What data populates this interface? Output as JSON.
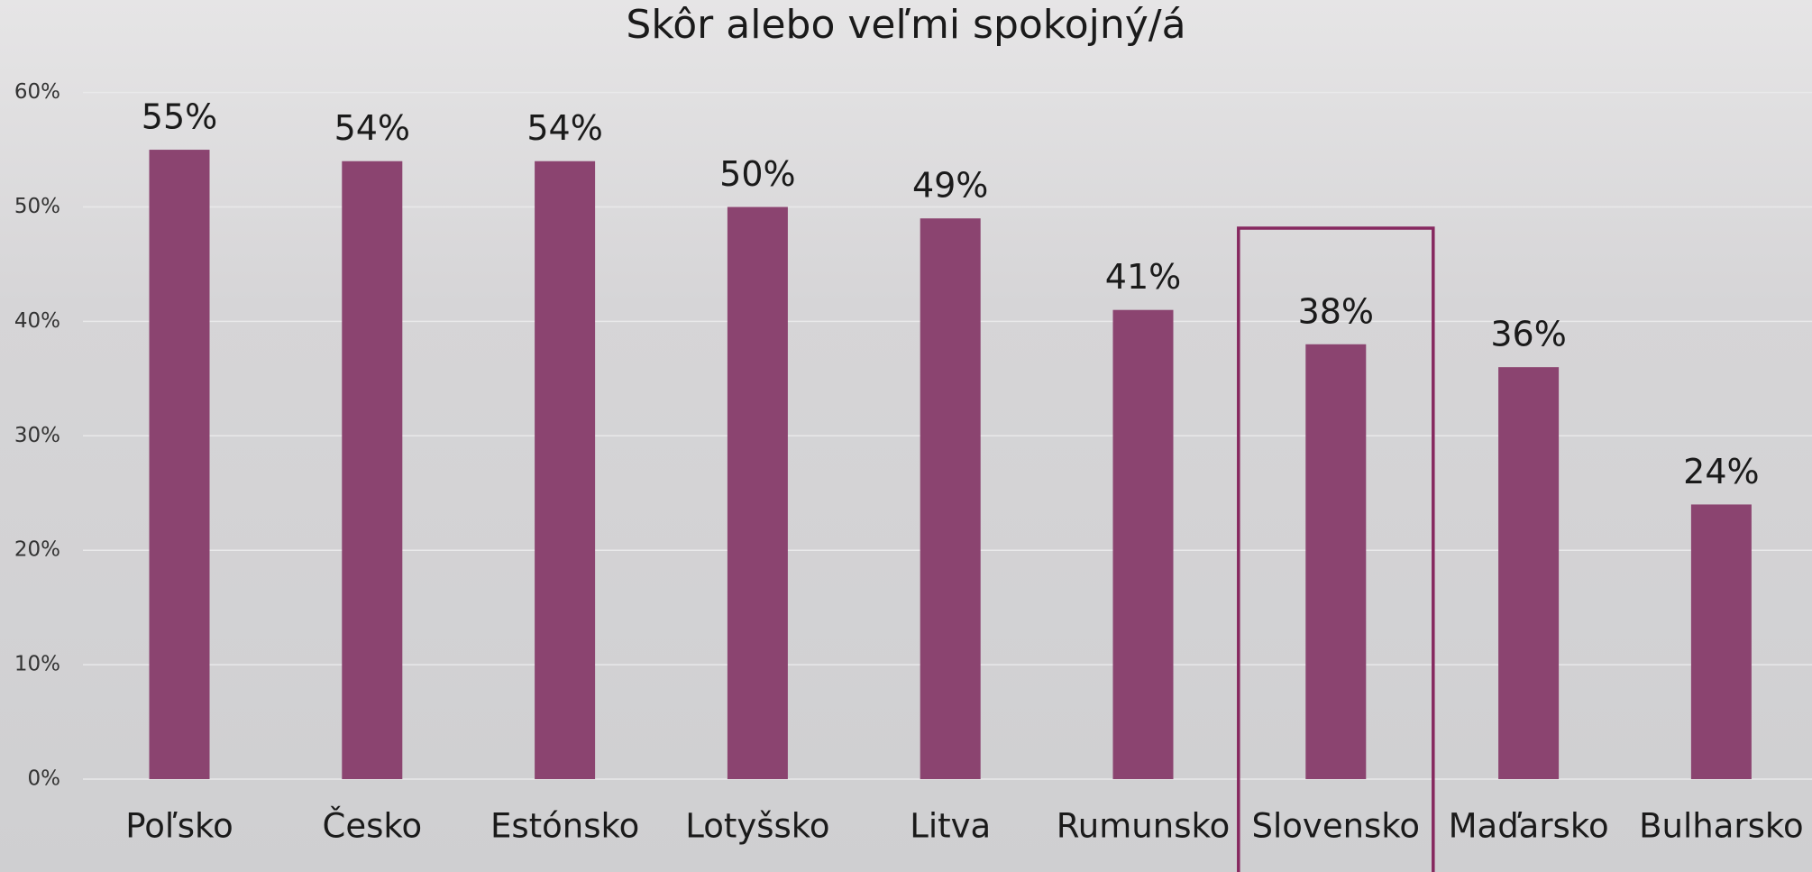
{
  "chart_data": {
    "type": "bar",
    "title": "Skôr alebo veľmi spokojný/á",
    "categories": [
      "Poľsko",
      "Česko",
      "Estónsko",
      "Lotyšsko",
      "Litva",
      "Rumunsko",
      "Slovensko",
      "Maďarsko",
      "Bulharsko"
    ],
    "values": [
      55,
      54,
      54,
      50,
      49,
      41,
      38,
      36,
      24
    ],
    "value_labels": [
      "55%",
      "54%",
      "54%",
      "50%",
      "49%",
      "41%",
      "38%",
      "36%",
      "24%"
    ],
    "color": "#8b4470",
    "ylim": [
      0,
      60
    ],
    "yticks": [
      {
        "value": 0,
        "label": "0%"
      },
      {
        "value": 10,
        "label": "10%"
      },
      {
        "value": 20,
        "label": "20%"
      },
      {
        "value": 30,
        "label": "30%"
      },
      {
        "value": 40,
        "label": "40%"
      },
      {
        "value": 50,
        "label": "50%"
      },
      {
        "value": 60,
        "label": "60%"
      }
    ],
    "grid": true,
    "highlight": "Slovensko",
    "highlight_color": "#86285f"
  }
}
